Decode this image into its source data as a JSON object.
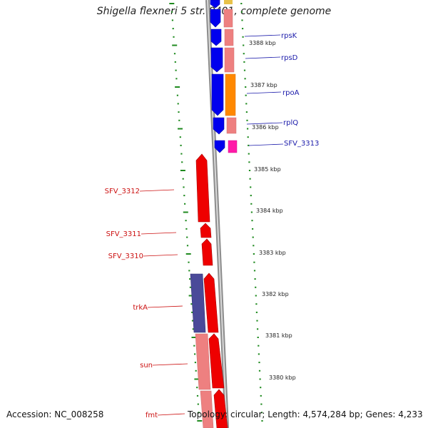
{
  "title": "Shigella flexneri 5 str. 8401, complete genome",
  "accession": "Accession: NC_008258",
  "topology": "Topology: circular; Length: 4,574,284 bp; Genes: 4,233",
  "kbp_labels": [
    "3388 kbp",
    "3387 kbp",
    "3386 kbp",
    "3385 kbp",
    "3384 kbp",
    "3383 kbp",
    "3382 kbp",
    "3381 kbp",
    "3380 kbp"
  ],
  "gene_labels_right": [
    "rpsK",
    "rpsD",
    "rpoA",
    "rplQ",
    "SFV_3313"
  ],
  "gene_labels_left": [
    "SFV_3312",
    "SFV_3311",
    "SFV_3310",
    "trkA",
    "sun",
    "fmt"
  ],
  "colors": {
    "forward_gene": "#0000ee",
    "reverse_gene": "#ee0000",
    "light_red": "#ee8080",
    "orange": "#ff8800",
    "magenta": "#ff1aa8",
    "navy_violet": "#4a4a99",
    "tick_green": "#1f8a1f",
    "backbone": "#8c8c8c"
  }
}
